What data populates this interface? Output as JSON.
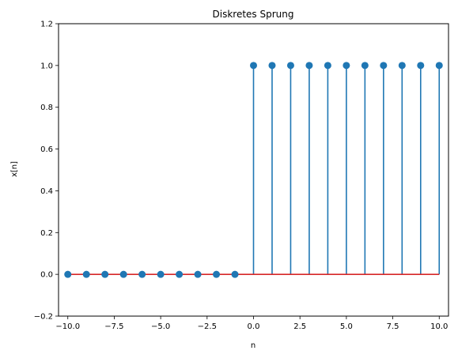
{
  "chart_data": {
    "type": "stem",
    "title": "Diskretes Sprung",
    "xlabel": "n",
    "ylabel": "x[n]",
    "xlim": [
      -10.5,
      10.5
    ],
    "ylim": [
      -0.2,
      1.2
    ],
    "x": [
      -10,
      -9,
      -8,
      -7,
      -6,
      -5,
      -4,
      -3,
      -2,
      -1,
      0,
      1,
      2,
      3,
      4,
      5,
      6,
      7,
      8,
      9,
      10
    ],
    "y": [
      0,
      0,
      0,
      0,
      0,
      0,
      0,
      0,
      0,
      0,
      1,
      1,
      1,
      1,
      1,
      1,
      1,
      1,
      1,
      1,
      1
    ],
    "xticks": [
      -10.0,
      -7.5,
      -5.0,
      -2.5,
      0.0,
      2.5,
      5.0,
      7.5,
      10.0
    ],
    "xtick_labels": [
      "−10.0",
      "−7.5",
      "−5.0",
      "−2.5",
      "0.0",
      "2.5",
      "5.0",
      "7.5",
      "10.0"
    ],
    "yticks": [
      -0.2,
      0.0,
      0.2,
      0.4,
      0.6,
      0.8,
      1.0,
      1.2
    ],
    "ytick_labels": [
      "−0.2",
      "0.0",
      "0.2",
      "0.4",
      "0.6",
      "0.8",
      "1.0",
      "1.2"
    ],
    "grid": false,
    "colors": {
      "marker": "#1f77b4",
      "stem": "#1f77b4",
      "baseline": "#d62728"
    }
  }
}
